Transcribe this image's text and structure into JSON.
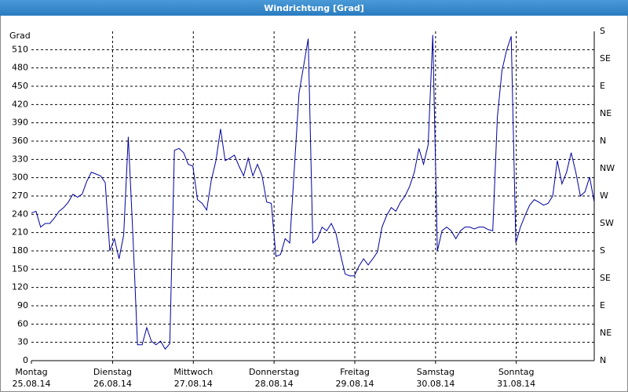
{
  "chart_data": {
    "type": "line",
    "title": "Windrichtung [Grad]",
    "ylabel": "Grad",
    "series": [
      {
        "name": "Windrichtung",
        "color": "#0000a0",
        "values": [
          242,
          245,
          219,
          225,
          225,
          234,
          245,
          251,
          260,
          273,
          268,
          273,
          294,
          309,
          306,
          303,
          292,
          180,
          200,
          167,
          206,
          367,
          206,
          26,
          26,
          54,
          32,
          26,
          32,
          19,
          28,
          345,
          348,
          341,
          322,
          319,
          264,
          258,
          247,
          296,
          328,
          380,
          328,
          332,
          337,
          319,
          303,
          332,
          303,
          322,
          303,
          260,
          258,
          171,
          174,
          200,
          193,
          316,
          438,
          483,
          528,
          193,
          200,
          219,
          213,
          225,
          209,
          174,
          142,
          139,
          139,
          155,
          167,
          157,
          167,
          178,
          219,
          238,
          251,
          245,
          260,
          270,
          286,
          309,
          348,
          322,
          354,
          534,
          180,
          213,
          219,
          213,
          200,
          213,
          219,
          219,
          216,
          219,
          219,
          215,
          213,
          399,
          476,
          509,
          532,
          193,
          219,
          238,
          255,
          264,
          260,
          255,
          258,
          270,
          328,
          290,
          309,
          341,
          309,
          270,
          277,
          301,
          260
        ]
      }
    ],
    "xlim": [
      0,
      122
    ],
    "xticks": [
      {
        "value": 0,
        "label": "Montag",
        "date": "25.08.14"
      },
      {
        "value": 17.6,
        "label": "Dienstag",
        "date": "26.08.14"
      },
      {
        "value": 35.1,
        "label": "Mittwoch",
        "date": "27.08.14"
      },
      {
        "value": 52.6,
        "label": "Donnerstag",
        "date": "28.08.14"
      },
      {
        "value": 70.1,
        "label": "Freitag",
        "date": "29.08.14"
      },
      {
        "value": 87.6,
        "label": "Samstag",
        "date": "30.08.14"
      },
      {
        "value": 105.1,
        "label": "Sonntag",
        "date": "31.08.14"
      }
    ],
    "ylim": [
      0,
      540
    ],
    "yticks": [
      0,
      30,
      60,
      90,
      120,
      150,
      180,
      210,
      240,
      270,
      300,
      330,
      360,
      390,
      420,
      450,
      480,
      510
    ],
    "y2lim": [
      0,
      540
    ],
    "y2ticks": [
      {
        "value": 0,
        "label": "N"
      },
      {
        "value": 45,
        "label": "NE"
      },
      {
        "value": 90,
        "label": "E"
      },
      {
        "value": 135,
        "label": "SE"
      },
      {
        "value": 180,
        "label": "S"
      },
      {
        "value": 225,
        "label": "SW"
      },
      {
        "value": 270,
        "label": "W"
      },
      {
        "value": 315,
        "label": "NW"
      },
      {
        "value": 360,
        "label": "N"
      },
      {
        "value": 405,
        "label": "NE"
      },
      {
        "value": 450,
        "label": "E"
      },
      {
        "value": 495,
        "label": "SE"
      },
      {
        "value": 540,
        "label": "S"
      }
    ],
    "grid": true
  }
}
